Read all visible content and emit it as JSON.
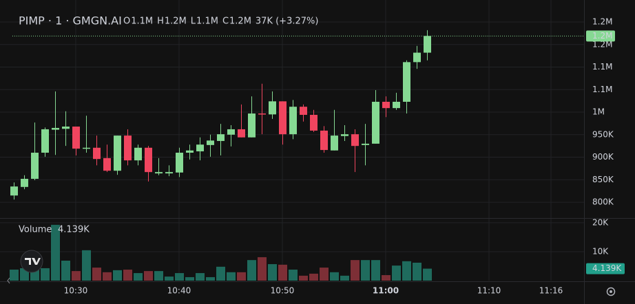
{
  "chart_data": {
    "type": "candlestick",
    "title": "PIMP · 1 · GMGN.AI",
    "ohlc_legend": [
      {
        "key": "O",
        "value": "1.1M"
      },
      {
        "key": "H",
        "value": "1.2M"
      },
      {
        "key": "L",
        "value": "1.1M"
      },
      {
        "key": "C",
        "value": "1.2M"
      }
    ],
    "change": "37K (+3.27%)",
    "x": [
      624,
      625,
      626,
      627,
      628,
      629,
      630,
      631,
      632,
      633,
      634,
      635,
      636,
      637,
      638,
      639,
      640,
      641,
      642,
      643,
      644,
      645,
      646,
      647,
      648,
      649,
      650,
      651,
      652,
      653,
      654,
      655,
      656,
      657,
      658,
      659,
      660,
      661,
      662,
      663,
      664
    ],
    "xlim": [
      622.67,
      679.2
    ],
    "xticks": [
      {
        "value": 630,
        "label": "10:30"
      },
      {
        "value": 640,
        "label": "10:40"
      },
      {
        "value": 650,
        "label": "10:50"
      },
      {
        "value": 660,
        "label": "11:00"
      },
      {
        "value": 670,
        "label": "11:10"
      },
      {
        "value": 676,
        "label": "11:16"
      }
    ],
    "up_color": "#86d993",
    "down_color": "#f0455f",
    "open": [
      815000,
      834000,
      852000,
      910000,
      961000,
      963000,
      968000,
      919000,
      921000,
      898000,
      870000,
      948000,
      893000,
      921000,
      864000,
      864000,
      866000,
      910000,
      913000,
      927000,
      936000,
      950000,
      962000,
      944000,
      997000,
      995000,
      1024000,
      951000,
      1012000,
      994000,
      959000,
      915000,
      947000,
      951000,
      927000,
      930000,
      1023000,
      1009000,
      1023000,
      1111000,
      1132000
    ],
    "high": [
      844000,
      860000,
      977000,
      966000,
      1046000,
      1002000,
      968000,
      992000,
      948000,
      928000,
      948000,
      962000,
      928000,
      925000,
      898000,
      882000,
      921000,
      928000,
      944000,
      950000,
      974000,
      971000,
      1017000,
      1035000,
      1063000,
      1046000,
      1024000,
      1027000,
      1017000,
      1005000,
      969000,
      1005000,
      971000,
      962000,
      974000,
      1049000,
      1035000,
      1043000,
      1115000,
      1147000,
      1182000
    ],
    "low": [
      806000,
      829000,
      849000,
      901000,
      905000,
      925000,
      904000,
      910000,
      882000,
      867000,
      861000,
      882000,
      882000,
      846000,
      860000,
      858000,
      856000,
      895000,
      893000,
      901000,
      904000,
      924000,
      944000,
      944000,
      951000,
      985000,
      928000,
      940000,
      979000,
      956000,
      910000,
      915000,
      936000,
      867000,
      882000,
      930000,
      989000,
      1005000,
      997000,
      1096000,
      1115000
    ],
    "close": [
      835000,
      852000,
      910000,
      962000,
      965000,
      968000,
      919000,
      921000,
      896000,
      870000,
      948000,
      893000,
      921000,
      867000,
      867000,
      867000,
      910000,
      915000,
      928000,
      937000,
      951000,
      962000,
      944000,
      997000,
      995000,
      1024000,
      951000,
      1012000,
      994000,
      959000,
      916000,
      948000,
      951000,
      925000,
      930000,
      1023000,
      1009000,
      1023000,
      1111000,
      1132000,
      1169000
    ],
    "ylim": [
      765000,
      1226000
    ],
    "yticks": [
      {
        "value": 800000,
        "label": "800K"
      },
      {
        "value": 850000,
        "label": "850K"
      },
      {
        "value": 900000,
        "label": "900K"
      },
      {
        "value": 950000,
        "label": "950K"
      },
      {
        "value": 1000000,
        "label": "1M"
      },
      {
        "value": 1050000,
        "label": "1.1M"
      },
      {
        "value": 1100000,
        "label": "1.1M"
      },
      {
        "value": 1150000,
        "label": "1.2M"
      },
      {
        "value": 1200000,
        "label": "1.2M"
      }
    ],
    "last_price": {
      "value": 1169000,
      "label": "1.2M"
    },
    "grid": true,
    "volume": {
      "name": "Volume",
      "up_color": "#1f6b5d",
      "down_color": "#7d2f36",
      "label_color": "#22a08b",
      "values": [
        3800,
        4300,
        3800,
        4300,
        19300,
        6900,
        3300,
        10500,
        4500,
        2900,
        3600,
        3800,
        2600,
        3300,
        3300,
        1400,
        2600,
        1200,
        2600,
        1200,
        4800,
        2900,
        2900,
        7100,
        8100,
        5700,
        5500,
        3800,
        1700,
        2400,
        4500,
        2900,
        1700,
        7100,
        7100,
        7100,
        1900,
        5200,
        6700,
        6200,
        4139
      ],
      "value_labels": [
        null,
        null,
        null,
        null,
        null,
        null,
        null,
        null,
        null,
        null,
        null,
        null,
        null,
        null,
        null,
        null,
        null,
        null,
        null,
        null,
        null,
        null,
        null,
        null,
        null,
        null,
        null,
        null,
        null,
        null,
        null,
        null,
        null,
        null,
        null,
        null,
        null,
        null,
        null,
        null,
        "4.139K"
      ],
      "ylim": [
        0,
        21400
      ],
      "yticks": [
        {
          "value": 10000,
          "label": "10K"
        },
        {
          "value": 20000,
          "label": "20K"
        }
      ]
    }
  }
}
